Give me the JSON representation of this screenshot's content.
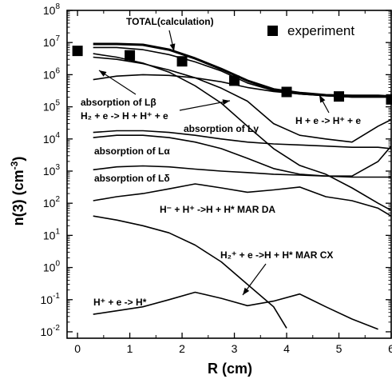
{
  "chart_data": {
    "type": "line",
    "xlabel": "R  (cm)",
    "ylabel": "n(3)  (cm",
    "ylabel_sup": "-3",
    "ylabel_close": ")",
    "xlim": [
      -0.2,
      6.0
    ],
    "ylim_log10": [
      -2.2,
      8.0
    ],
    "x_scale": "linear",
    "y_scale": "log",
    "x_ticks": [
      0,
      1,
      2,
      3,
      4,
      5,
      6
    ],
    "x_tick_labels": [
      "0",
      "1",
      "2",
      "3",
      "4",
      "5",
      "6"
    ],
    "y_tick_labels": [
      {
        "exp": -2,
        "base": "10",
        "sup": "-2"
      },
      {
        "exp": -1,
        "base": "10",
        "sup": "-1"
      },
      {
        "exp": 0,
        "base": "10",
        "sup": "0"
      },
      {
        "exp": 1,
        "base": "10",
        "sup": "1"
      },
      {
        "exp": 2,
        "base": "10",
        "sup": "2"
      },
      {
        "exp": 3,
        "base": "10",
        "sup": "3"
      },
      {
        "exp": 4,
        "base": "10",
        "sup": "4"
      },
      {
        "exp": 5,
        "base": "10",
        "sup": "5"
      },
      {
        "exp": 6,
        "base": "10",
        "sup": "6"
      },
      {
        "exp": 7,
        "base": "10",
        "sup": "7"
      },
      {
        "exp": 8,
        "base": "10",
        "sup": "8"
      }
    ],
    "legend": {
      "label": "experiment",
      "marker": "filled-square",
      "position": "top-right"
    },
    "series": [
      {
        "name": "experiment",
        "kind": "markers",
        "x": [
          0,
          1,
          2,
          3,
          4,
          5,
          6
        ],
        "y": [
          5500000.0,
          4000000.0,
          2600000.0,
          650000.0,
          290000.0,
          210000.0,
          170000.0
        ]
      },
      {
        "name": "TOTAL(calculation)",
        "kind": "line",
        "width": 3,
        "x": [
          0.3,
          0.75,
          1.25,
          1.75,
          2.25,
          2.75,
          3.25,
          3.75,
          4.25,
          4.75,
          5.25,
          5.75,
          6.0
        ],
        "y": [
          9000000.0,
          9000000.0,
          8500000.0,
          6000000.0,
          3200000.0,
          1500000.0,
          650000.0,
          350000.0,
          270000.0,
          230000.0,
          220000.0,
          220000.0,
          210000.0
        ]
      },
      {
        "name": "absorption of Lβ",
        "kind": "line",
        "x": [
          0.3,
          0.75,
          1.25,
          1.75,
          2.25,
          2.75,
          3.25,
          3.75,
          4.25,
          4.75,
          5.25,
          5.75,
          6.0
        ],
        "y": [
          7000000.0,
          7000000.0,
          6000000.0,
          4200000.0,
          2500000.0,
          1300000.0,
          550000.0,
          320000.0,
          250000.0,
          220000.0,
          200000.0,
          200000.0,
          200000.0
        ]
      },
      {
        "name": "H2 + e -> H + H+ + e",
        "kind": "line",
        "x": [
          0.3,
          0.75,
          1.25,
          1.75,
          2.25,
          2.75,
          3.25,
          3.75,
          4.25,
          4.75,
          5.25,
          5.75,
          6.0
        ],
        "y": [
          4500000.0,
          3500000.0,
          2300000.0,
          1200000.0,
          450000.0,
          130000.0,
          25000.0,
          5000.0,
          1500.0,
          800.0,
          300.0,
          100.0,
          60.0
        ]
      },
      {
        "name": "H + e -> H+ + e",
        "kind": "line",
        "x": [
          0.3,
          0.75,
          1.25,
          1.75,
          2.25,
          2.75,
          3.25,
          3.75,
          4.25,
          4.75,
          5.25,
          5.75,
          6.0
        ],
        "y": [
          3500000.0,
          3000000.0,
          2200000.0,
          1400000.0,
          800000.0,
          380000.0,
          150000.0,
          30000.0,
          13000.0,
          10000.0,
          8000.0,
          25000.0,
          40000.0
        ]
      },
      {
        "name": "absorption of Lγ",
        "kind": "line",
        "x": [
          0.3,
          0.75,
          1.25,
          1.75,
          2.25,
          2.75,
          3.25,
          3.75,
          4.25,
          4.75,
          5.25,
          5.75,
          6.0
        ],
        "y": [
          700000.0,
          900000.0,
          1000000.0,
          950000.0,
          800000.0,
          600000.0,
          400000.0,
          300000.0,
          250000.0,
          220000.0,
          200000.0,
          200000.0,
          200000.0
        ]
      },
      {
        "name": "absorption of Lα",
        "kind": "line",
        "x": [
          0.3,
          0.75,
          1.25,
          1.75,
          2.25,
          2.75,
          3.25,
          3.75,
          4.25,
          4.75,
          5.25,
          5.75,
          6.0
        ],
        "y": [
          16000.0,
          18000.0,
          18000.0,
          16000.0,
          13000.0,
          10000.0,
          8000.0,
          7000.0,
          6500.0,
          6000.0,
          5500.0,
          5500.0,
          5000.0
        ]
      },
      {
        "name": "curve-low-rising",
        "kind": "line",
        "x": [
          0.3,
          0.75,
          1.25,
          1.75,
          2.25,
          2.75,
          3.25,
          3.75,
          4.25,
          4.75,
          5.25,
          5.75,
          6.0
        ],
        "y": [
          11000.0,
          13000.0,
          13000.0,
          11000.0,
          8000.0,
          5000.0,
          2500.0,
          1200.0,
          800.0,
          700.0,
          700.0,
          2000.0,
          6000.0
        ]
      },
      {
        "name": "absorption of Lδ",
        "kind": "line",
        "x": [
          0.3,
          0.75,
          1.25,
          1.75,
          2.25,
          2.75,
          3.25,
          3.75,
          4.25,
          4.75,
          5.25,
          5.75,
          6.0
        ],
        "y": [
          1100.0,
          1350.0,
          1450.0,
          1350.0,
          1150.0,
          1000.0,
          900.0,
          800.0,
          750.0,
          700.0,
          650.0,
          650.0,
          650.0
        ]
      },
      {
        "name": "H- + H+ -> H + H* MAR DA",
        "kind": "line",
        "x": [
          0.3,
          0.75,
          1.25,
          1.75,
          2.25,
          2.75,
          3.25,
          3.75,
          4.25,
          4.75,
          5.25,
          5.75,
          6.0
        ],
        "y": [
          120.0,
          160.0,
          200.0,
          280.0,
          400.0,
          300.0,
          220.0,
          260.0,
          320.0,
          160.0,
          120.0,
          70.0,
          40.0
        ]
      },
      {
        "name": "H2+ + e -> H + H* MAR CX",
        "kind": "line",
        "x": [
          0.3,
          0.75,
          1.25,
          1.75,
          2.25,
          2.75,
          3.25,
          3.75,
          4.0
        ],
        "y": [
          40.0,
          30.0,
          20.0,
          12.0,
          5.0,
          1.5,
          0.3,
          0.06,
          0.013
        ]
      },
      {
        "name": "H+ + e -> H*",
        "kind": "line",
        "x": [
          0.3,
          0.75,
          1.25,
          1.75,
          2.25,
          2.75,
          3.25,
          3.75,
          4.25,
          4.75,
          5.25,
          5.75
        ],
        "y": [
          0.035,
          0.045,
          0.06,
          0.1,
          0.17,
          0.11,
          0.065,
          0.09,
          0.15,
          0.06,
          0.025,
          0.012
        ]
      }
    ],
    "annotations": [
      {
        "id": "total",
        "text": "TOTAL(calculation)"
      },
      {
        "id": "lbeta",
        "text": "absorption of Lβ"
      },
      {
        "id": "h2e",
        "text": "H₂ + e -> H + H⁺ + e"
      },
      {
        "id": "hion",
        "text": "H + e -> H⁺ + e"
      },
      {
        "id": "lgamma",
        "text": "absorption of Lγ"
      },
      {
        "id": "lalpha",
        "text": "absorption of Lα"
      },
      {
        "id": "ldelta",
        "text": "absorption of Lδ"
      },
      {
        "id": "marda",
        "text": "H⁻ + H⁺ ->H + H* MAR DA"
      },
      {
        "id": "marcx",
        "text": "H₂⁺ + e ->H + H* MAR CX"
      },
      {
        "id": "recomb",
        "text": "H⁺ + e -> H*"
      }
    ]
  }
}
